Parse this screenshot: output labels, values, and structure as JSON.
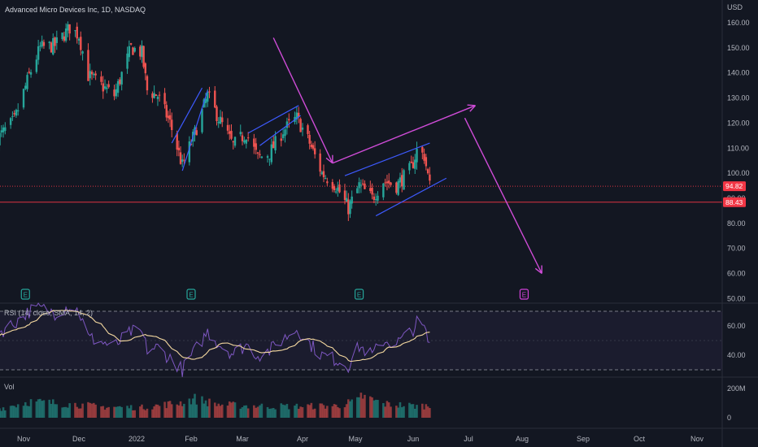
{
  "chart_data": {
    "type": "candlestick",
    "title": "Advanced Micro Devices Inc, 1D, NASDAQ",
    "currency": "USD",
    "price_axis": {
      "ticks": [
        "160.00",
        "150.00",
        "140.00",
        "130.00",
        "120.00",
        "110.00",
        "100.00",
        "90.00",
        "80.00",
        "70.00",
        "60.00",
        "50.00"
      ],
      "tick_values": [
        160,
        150,
        140,
        130,
        120,
        110,
        100,
        90,
        80,
        70,
        60,
        50
      ],
      "range": [
        50,
        165
      ]
    },
    "time_axis": {
      "labels": [
        "Nov",
        "Dec",
        "2022",
        "Feb",
        "Mar",
        "Apr",
        "May",
        "Jun",
        "Jul",
        "Aug",
        "Sep",
        "Oct",
        "Nov"
      ]
    },
    "price_tags": [
      {
        "value": 94.82,
        "label": "94.82",
        "color": "#f23645"
      },
      {
        "value": 88.43,
        "label": "88.43",
        "color": "#f23645"
      }
    ],
    "earnings_markers": [
      {
        "label": "E",
        "date": "2021-11-02",
        "color": "#26a69a"
      },
      {
        "label": "E",
        "date": "2022-02-01",
        "color": "#26a69a"
      },
      {
        "label": "E",
        "date": "2022-05-03",
        "color": "#26a69a"
      },
      {
        "label": "E",
        "date": "2022-08-02",
        "color": "#d040d8"
      }
    ],
    "candles_anchor": [
      [
        "2021-10-18",
        114
      ],
      [
        "2021-10-27",
        121
      ],
      [
        "2021-11-04",
        139
      ],
      [
        "2021-11-10",
        150
      ],
      [
        "2021-11-18",
        151
      ],
      [
        "2021-11-26",
        158
      ],
      [
        "2021-12-01",
        155
      ],
      [
        "2021-12-06",
        139
      ],
      [
        "2021-12-13",
        135
      ],
      [
        "2021-12-20",
        131
      ],
      [
        "2021-12-29",
        150
      ],
      [
        "2022-01-04",
        148
      ],
      [
        "2022-01-07",
        133
      ],
      [
        "2022-01-13",
        131
      ],
      [
        "2022-01-20",
        120
      ],
      [
        "2022-01-27",
        103
      ],
      [
        "2022-02-03",
        116
      ],
      [
        "2022-02-10",
        131
      ],
      [
        "2022-02-16",
        122
      ],
      [
        "2022-02-24",
        111
      ],
      [
        "2022-03-03",
        116
      ],
      [
        "2022-03-09",
        106
      ],
      [
        "2022-03-15",
        108
      ],
      [
        "2022-03-22",
        117
      ],
      [
        "2022-03-29",
        122
      ],
      [
        "2022-04-05",
        112
      ],
      [
        "2022-04-12",
        100
      ],
      [
        "2022-04-20",
        95
      ],
      [
        "2022-04-27",
        86
      ],
      [
        "2022-05-03",
        95
      ],
      [
        "2022-05-10",
        90
      ],
      [
        "2022-05-16",
        97
      ],
      [
        "2022-05-23",
        95
      ],
      [
        "2022-05-31",
        102
      ],
      [
        "2022-06-03",
        109
      ],
      [
        "2022-06-07",
        107
      ],
      [
        "2022-06-10",
        95
      ]
    ],
    "drawings": {
      "arrow_1": {
        "from": [
          "2022-03-17",
          154
        ],
        "to": [
          "2022-04-18",
          104
        ]
      },
      "arrow_2": {
        "from": [
          "2022-04-18",
          104
        ],
        "to": [
          "2022-07-05",
          127
        ]
      },
      "arrow_3": {
        "from": [
          "2022-06-29",
          122
        ],
        "to": [
          "2022-08-11",
          60
        ]
      },
      "rsi_overbought": 70,
      "rsi_oversold": 30
    },
    "rsi": {
      "label": "RSI (14, close, SMA, 14, 2)",
      "ticks": [
        "60.00",
        "40.00"
      ],
      "tick_values": [
        60,
        40
      ],
      "range": [
        27,
        75
      ],
      "bands": [
        70,
        50,
        30
      ],
      "rsi_anchor": [
        [
          "2021-10-18",
          55
        ],
        [
          "2021-10-27",
          62
        ],
        [
          "2021-11-04",
          70
        ],
        [
          "2021-11-10",
          72
        ],
        [
          "2021-11-18",
          69
        ],
        [
          "2021-11-26",
          74
        ],
        [
          "2021-12-01",
          70
        ],
        [
          "2021-12-06",
          52
        ],
        [
          "2021-12-13",
          49
        ],
        [
          "2021-12-20",
          46
        ],
        [
          "2021-12-29",
          56
        ],
        [
          "2022-01-04",
          55
        ],
        [
          "2022-01-07",
          44
        ],
        [
          "2022-01-13",
          45
        ],
        [
          "2022-01-20",
          38
        ],
        [
          "2022-01-27",
          30
        ],
        [
          "2022-02-03",
          43
        ],
        [
          "2022-02-10",
          56
        ],
        [
          "2022-02-16",
          48
        ],
        [
          "2022-02-24",
          41
        ],
        [
          "2022-03-03",
          47
        ],
        [
          "2022-03-09",
          40
        ],
        [
          "2022-03-15",
          43
        ],
        [
          "2022-03-22",
          51
        ],
        [
          "2022-03-29",
          58
        ],
        [
          "2022-04-05",
          48
        ],
        [
          "2022-04-12",
          40
        ],
        [
          "2022-04-20",
          37
        ],
        [
          "2022-04-27",
          33
        ],
        [
          "2022-05-03",
          46
        ],
        [
          "2022-05-10",
          40
        ],
        [
          "2022-05-16",
          50
        ],
        [
          "2022-05-23",
          48
        ],
        [
          "2022-05-31",
          56
        ],
        [
          "2022-06-03",
          62
        ],
        [
          "2022-06-07",
          58
        ],
        [
          "2022-06-10",
          46
        ]
      ]
    },
    "volume": {
      "label": "Vol",
      "ticks": [
        "200M",
        "0"
      ],
      "tick_values": [
        200,
        0
      ],
      "unit": "M",
      "range": [
        0,
        230
      ],
      "vol_anchor": [
        [
          "2021-10-18",
          60
        ],
        [
          "2021-11-04",
          110
        ],
        [
          "2021-11-26",
          95
        ],
        [
          "2021-12-13",
          75
        ],
        [
          "2022-01-04",
          70
        ],
        [
          "2022-01-27",
          105
        ],
        [
          "2022-02-03",
          130
        ],
        [
          "2022-02-16",
          90
        ],
        [
          "2022-03-09",
          80
        ],
        [
          "2022-03-29",
          78
        ],
        [
          "2022-04-20",
          82
        ],
        [
          "2022-05-03",
          115
        ],
        [
          "2022-05-04",
          150
        ],
        [
          "2022-05-16",
          95
        ],
        [
          "2022-06-03",
          80
        ],
        [
          "2022-06-10",
          82
        ]
      ]
    }
  }
}
